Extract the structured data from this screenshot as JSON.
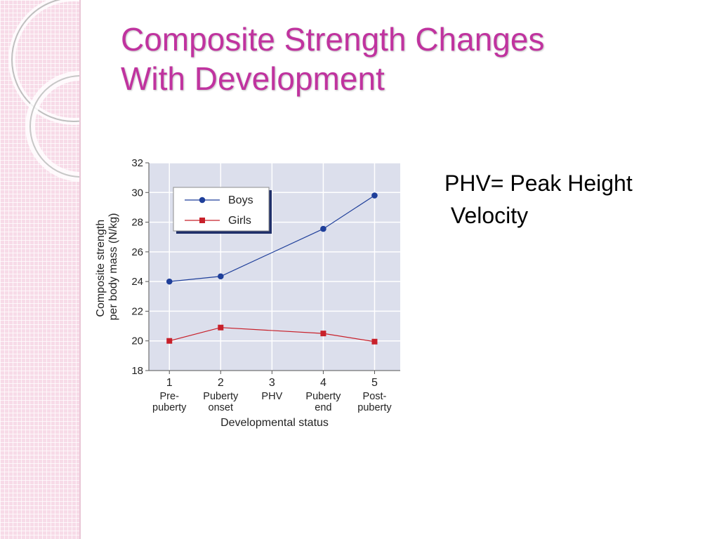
{
  "slide": {
    "title_lines": [
      "Composite Strength Changes",
      "With Development"
    ],
    "note_lines": [
      "PHV= Peak Height",
      " Velocity"
    ],
    "accent_color": "#c0339f"
  },
  "chart_data": {
    "type": "line",
    "title": "",
    "xlabel": "Developmental status",
    "ylabel": [
      "Composite strength",
      "per body mass (N/kg)"
    ],
    "ylim": [
      18,
      32
    ],
    "yticks": [
      18,
      20,
      22,
      24,
      26,
      28,
      30,
      32
    ],
    "x": [
      1,
      2,
      3,
      4,
      5
    ],
    "xtick_labels": [
      {
        "num": "1",
        "lines": [
          "Pre-",
          "puberty"
        ]
      },
      {
        "num": "2",
        "lines": [
          "Puberty",
          "onset"
        ]
      },
      {
        "num": "3",
        "lines": [
          "PHV"
        ]
      },
      {
        "num": "4",
        "lines": [
          "Puberty",
          "end"
        ]
      },
      {
        "num": "5",
        "lines": [
          "Post-",
          "puberty"
        ]
      }
    ],
    "grid": true,
    "legend_position": "top-left",
    "series": [
      {
        "name": "Boys",
        "marker": "circle",
        "color": "#1f3f9a",
        "x": [
          1,
          2,
          4,
          5
        ],
        "values": [
          24.0,
          24.35,
          27.55,
          29.8
        ]
      },
      {
        "name": "Girls",
        "marker": "square",
        "color": "#c8202a",
        "x": [
          1,
          2,
          4,
          5
        ],
        "values": [
          20.0,
          20.9,
          20.5,
          19.95
        ]
      }
    ]
  }
}
